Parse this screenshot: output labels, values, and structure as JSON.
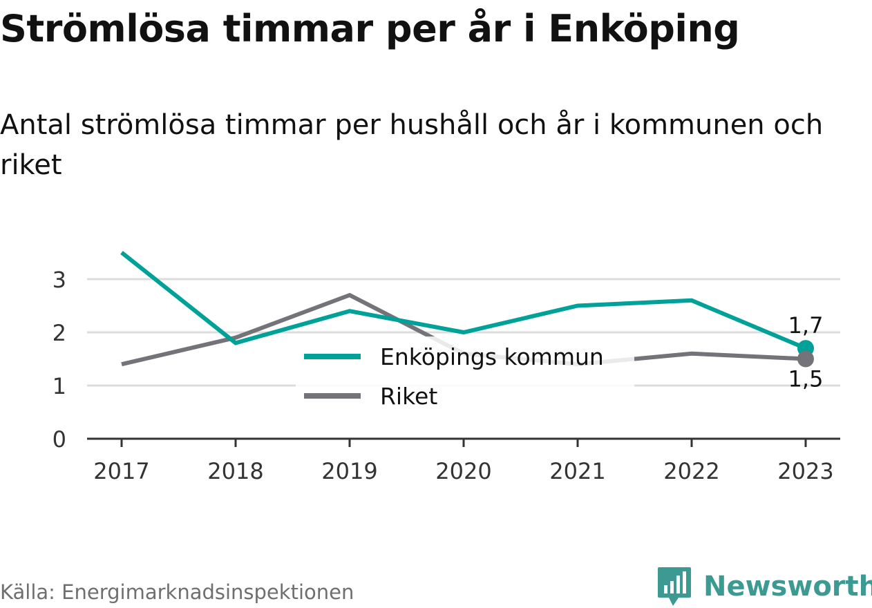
{
  "title": "Strömlösa timmar per år i Enköping",
  "subtitle": "Antal strömlösa timmar per hushåll och år i kommunen och riket",
  "source": "Källa: Energimarknadsinspektionen",
  "brand": {
    "name": "Newsworthy",
    "icon": "newsworthy-logo-icon",
    "color": "#3d9a93"
  },
  "chart_data": {
    "type": "line",
    "title": "Strömlösa timmar per år i Enköping",
    "subtitle": "Antal strömlösa timmar per hushåll och år i kommunen och riket",
    "x": [
      "2017",
      "2018",
      "2019",
      "2020",
      "2021",
      "2022",
      "2023"
    ],
    "ylim": [
      0,
      3.6
    ],
    "yticks": [
      "0",
      "1",
      "2",
      "3"
    ],
    "grid": true,
    "legend": "center",
    "series": [
      {
        "name": "Enköpings kommun",
        "color": "#00a198",
        "values": [
          3.5,
          1.8,
          2.4,
          2.0,
          2.5,
          2.6,
          1.7
        ],
        "end_label": "1,7"
      },
      {
        "name": "Riket",
        "color": "#74737a",
        "values": [
          1.4,
          1.9,
          2.7,
          1.6,
          1.4,
          1.6,
          1.5
        ],
        "end_label": "1,5"
      }
    ]
  }
}
